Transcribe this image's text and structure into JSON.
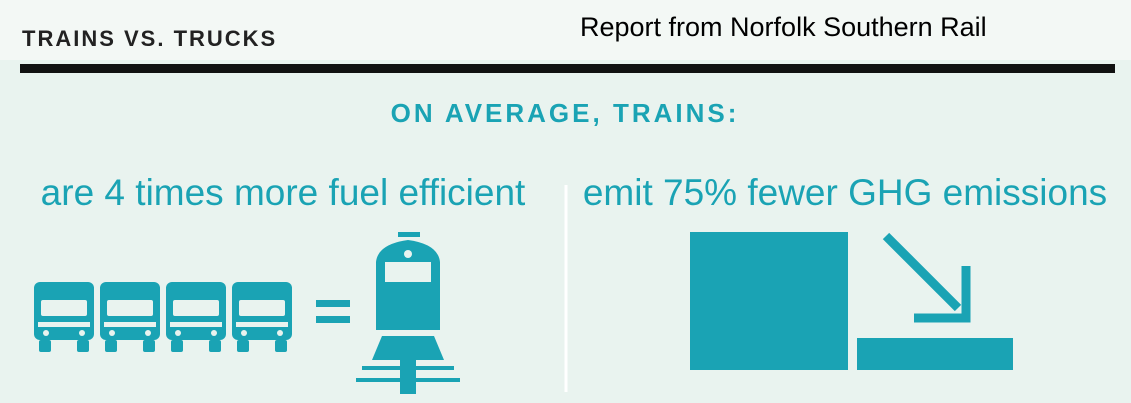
{
  "header": {
    "title": "TRAINS VS. TRUCKS",
    "source": "Report from Norfolk Southern Rail"
  },
  "subtitle": "ON AVERAGE, TRAINS:",
  "panels": [
    {
      "text": "are 4 times more fuel efficient"
    },
    {
      "text": "emit 75% fewer GHG emissions"
    }
  ]
}
